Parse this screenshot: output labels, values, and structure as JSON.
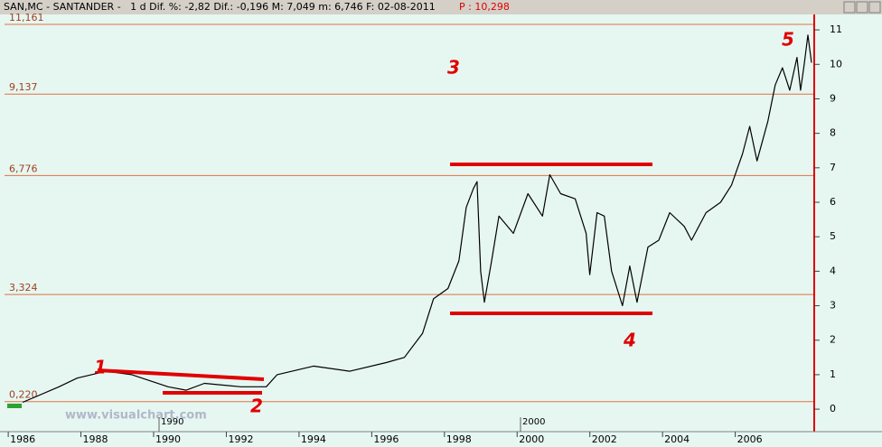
{
  "chart_data": {
    "type": "line",
    "subtitle": "SAN,MC - SANTANDER -   1 d Dif. %: -2,82 Dif.: -0,196 M: 7,049 m: 6,746 F: 02-08-2011",
    "price_label": "P : 10,298",
    "watermark": "www.visualchart.com",
    "period_labels": [
      "1990",
      "2000"
    ],
    "annotations": [
      "1",
      "2",
      "3",
      "4",
      "5"
    ],
    "levels": [
      {
        "value": 11.161,
        "label": "11,161"
      },
      {
        "value": 9.137,
        "label": "9,137"
      },
      {
        "value": 6.776,
        "label": "6,776"
      },
      {
        "value": 3.324,
        "label": "3,324"
      },
      {
        "value": 0.22,
        "label": "0,220"
      }
    ],
    "level_color": "#e07040",
    "xlim": [
      1985.5,
      2007.75
    ],
    "xticks": [
      1986,
      1988,
      1990,
      1992,
      1994,
      1996,
      1998,
      2000,
      2002,
      2004,
      2006
    ],
    "ylim": [
      -0.6,
      11.5
    ],
    "yticks": [
      0,
      1,
      2,
      3,
      4,
      5,
      6,
      7,
      8,
      9,
      10,
      11
    ],
    "series": [
      {
        "name": "SANTANDER",
        "color": "#000000",
        "x": [
          1986.0,
          1987.0,
          1987.5,
          1988.3,
          1989.0,
          1990.0,
          1990.5,
          1991.0,
          1992.0,
          1992.7,
          1993.0,
          1994.0,
          1995.0,
          1996.0,
          1996.5,
          1997.0,
          1997.3,
          1997.7,
          1998.0,
          1998.2,
          1998.4,
          1998.5,
          1998.6,
          1998.7,
          1998.9,
          1999.1,
          1999.5,
          1999.9,
          2000.3,
          2000.5,
          2000.8,
          2001.2,
          2001.5,
          2001.6,
          2001.8,
          2002.0,
          2002.2,
          2002.5,
          2002.7,
          2002.9,
          2003.2,
          2003.5,
          2003.8,
          2004.2,
          2004.4,
          2004.8,
          2005.2,
          2005.5,
          2005.8,
          2006.0,
          2006.2,
          2006.5,
          2006.7,
          2006.9,
          2007.1,
          2007.3,
          2007.4,
          2007.5,
          2007.6,
          2007.7
        ],
        "values": [
          0.2,
          0.65,
          0.9,
          1.1,
          1.0,
          0.65,
          0.55,
          0.75,
          0.65,
          0.65,
          1.0,
          1.25,
          1.1,
          1.35,
          1.5,
          2.2,
          3.2,
          3.5,
          4.3,
          5.85,
          6.4,
          6.6,
          4.0,
          3.1,
          4.3,
          5.6,
          5.1,
          6.25,
          5.6,
          6.8,
          6.25,
          6.1,
          5.1,
          3.9,
          5.7,
          5.6,
          4.0,
          3.0,
          4.15,
          3.1,
          4.7,
          4.9,
          5.7,
          5.3,
          4.9,
          5.7,
          6.0,
          6.5,
          7.4,
          8.2,
          7.2,
          8.35,
          9.4,
          9.9,
          9.25,
          10.2,
          9.25,
          10.0,
          10.85,
          10.05
        ]
      }
    ]
  }
}
